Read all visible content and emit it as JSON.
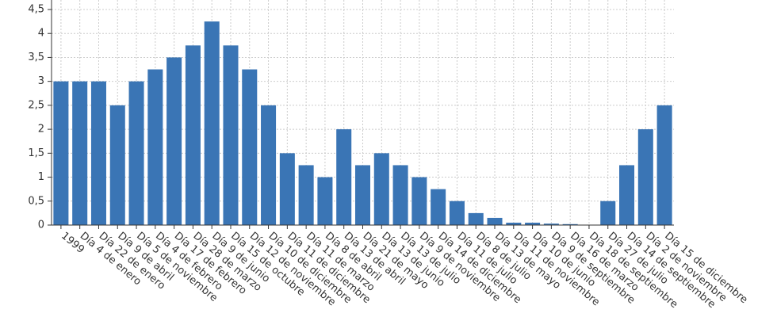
{
  "chart_data": {
    "type": "bar",
    "categories": [
      "1999",
      "Día 4 de enero",
      "Día 22 de enero",
      "Día 9 de abril",
      "Día 5 de noviembre",
      "Día 4 de febrero",
      "Día 17 de febrero",
      "Día 28 de marzo",
      "Día 9 de junio",
      "Día 15 de octubre",
      "Día 12 de noviembre",
      "Día 10 de diciembre",
      "Día 11 de diciembre",
      "Día 11 de marzo",
      "Día 8 de abril",
      "Día 13 de abril",
      "Día 21 de mayo",
      "Día 13 de junio",
      "Día 13 de julio",
      "Día 9 de noviembre",
      "Día 14 de diciembre",
      "Día 11 de julio",
      "Día 8 de julio",
      "Día 13 de mayo",
      "Día 11 de noviembre",
      "Día 10 de junio",
      "Día 9 de septiembre",
      "Día 16 de marzo",
      "Día 18 de septiembre",
      "Día 27 de julio",
      "Día 14 de septiembre",
      "Día 2 de noviembre",
      "Día 15 de diciembre"
    ],
    "values": [
      3,
      3,
      3,
      2.5,
      3,
      3.25,
      3.5,
      3.75,
      4.25,
      3.75,
      3.25,
      2.5,
      1.5,
      1.25,
      1,
      2,
      1.25,
      1.5,
      1.25,
      1,
      0.75,
      0.5,
      0.25,
      0.15,
      0.05,
      0.05,
      0.03,
      0.02,
      0,
      0.5,
      1.25,
      2,
      2.5
    ],
    "color": "#3a75b5",
    "ylim": [
      0,
      4.5
    ],
    "yticks": [
      0,
      {
        "value": 0.5,
        "label": "0,5"
      },
      1,
      {
        "value": 1.5,
        "label": "1,5"
      },
      2,
      {
        "value": 2.5,
        "label": "2,5"
      },
      3,
      {
        "value": 3.5,
        "label": "3,5"
      },
      4,
      {
        "value": 4.5,
        "label": "4,5"
      }
    ],
    "grid": true
  }
}
